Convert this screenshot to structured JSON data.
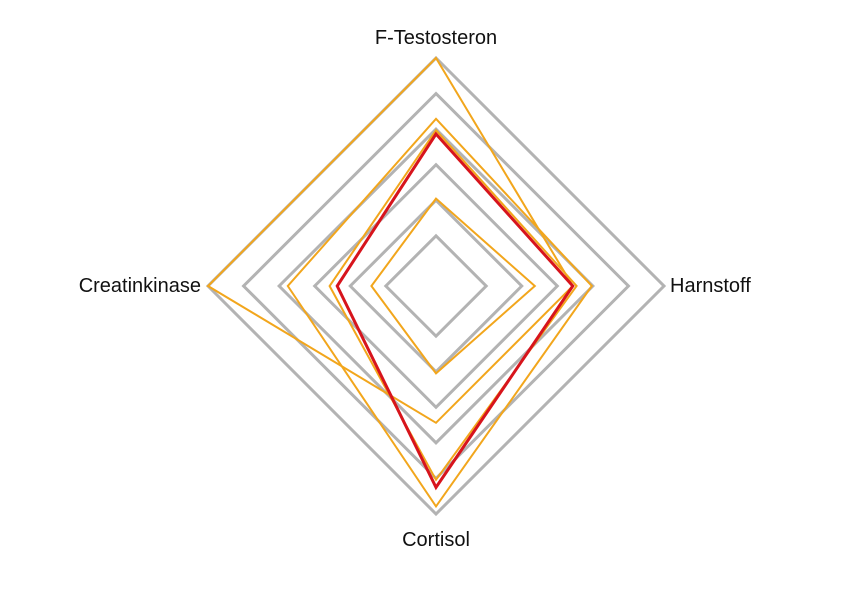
{
  "chart_data": {
    "type": "radar",
    "axes": [
      "F-Testosteron",
      "Harnstoff",
      "Cortisol",
      "Creatinkinase"
    ],
    "rings": 6,
    "range": [
      0,
      6
    ],
    "series": [
      {
        "values": [
          6,
          3.6,
          3.6,
          6
        ]
      },
      {
        "values": [
          4.4,
          4.1,
          5.8,
          3.9
        ]
      },
      {
        "values": [
          4.1,
          3.7,
          5.1,
          2.8
        ]
      },
      {
        "values": [
          2.3,
          2.6,
          2.3,
          1.7
        ]
      },
      {
        "values": [
          4.0,
          3.6,
          5.3,
          2.6
        ]
      }
    ],
    "colors": {
      "grid": "#b3b3b3",
      "orange": "#f2a61c",
      "red": "#d7141c"
    }
  }
}
